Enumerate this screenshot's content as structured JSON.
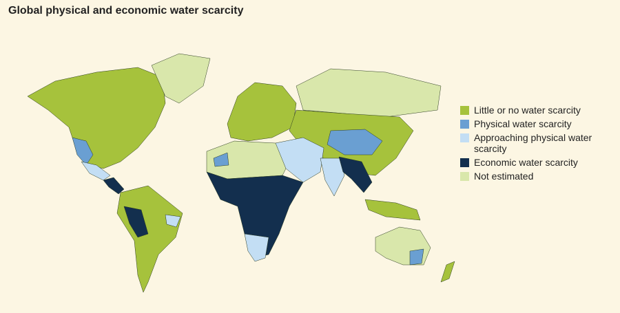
{
  "title": "Global physical and economic water scarcity",
  "legend": [
    {
      "label": "Little or no water scarcity",
      "color": "#a6c23c"
    },
    {
      "label": "Physical water scarcity",
      "color": "#6a9fd2"
    },
    {
      "label": "Approaching physical water scarcity",
      "color": "#c3def4"
    },
    {
      "label": "Economic water scarcity",
      "color": "#132f4e"
    },
    {
      "label": "Not estimated",
      "color": "#d9e7ab"
    }
  ]
}
